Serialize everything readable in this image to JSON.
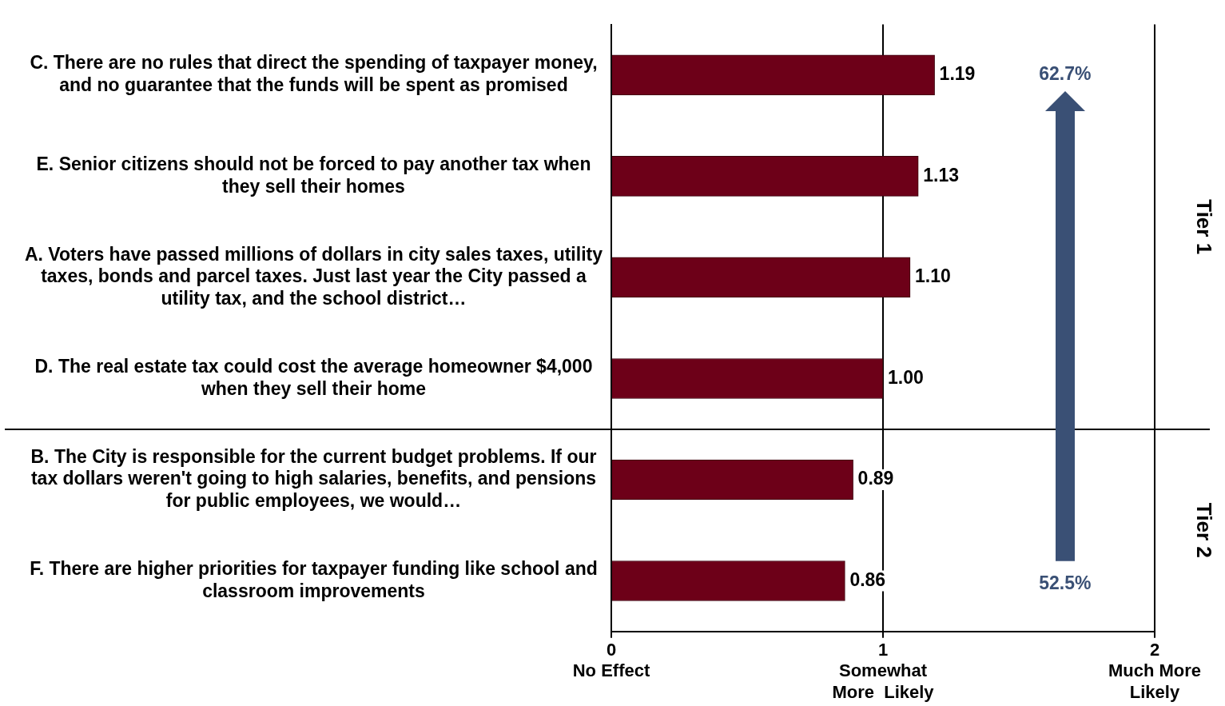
{
  "chart_data": {
    "type": "bar",
    "orientation": "horizontal",
    "categories": [
      "C. There are no rules that direct the spending of taxpayer money, and no guarantee that the funds will be spent as promised",
      "E. Senior citizens should not be forced to pay another tax when they sell their homes",
      "A. Voters have passed millions of dollars in city sales taxes, utility taxes, bonds and parcel taxes. Just last year the City passed a utility tax, and the school district…",
      "D. The real estate tax could cost the average homeowner $4,000 when they sell their home",
      "B. The City is responsible for the current budget problems. If our tax dollars weren't going to high salaries, benefits, and pensions for public employees, we would…",
      "F. There are higher priorities for taxpayer funding like school and classroom improvements"
    ],
    "values": [
      1.19,
      1.13,
      1.1,
      1.0,
      0.89,
      0.86
    ],
    "value_labels": [
      "1.19",
      "1.13",
      "1.10",
      "1.00",
      "0.89",
      "0.86"
    ],
    "color": "#6d0018",
    "xlim": [
      0,
      2
    ],
    "xticks": [
      {
        "value": 0,
        "label": "0\nNo Effect"
      },
      {
        "value": 1,
        "label": "1\nSomewhat\nMore  Likely"
      },
      {
        "value": 2,
        "label": "2\nMuch More\nLikely"
      }
    ],
    "grid": "x",
    "annotations": [
      "62.7%",
      "52.5%",
      "Tier 1",
      "Tier 2"
    ]
  }
}
